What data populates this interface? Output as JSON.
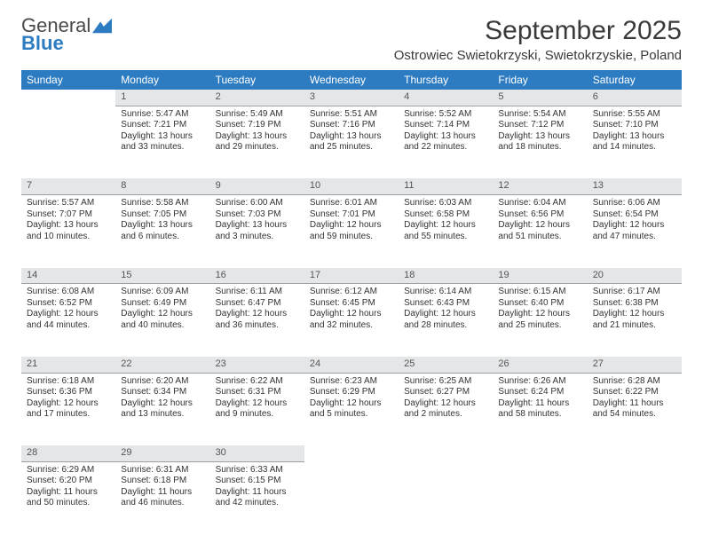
{
  "brand": {
    "part1": "General",
    "part2": "Blue"
  },
  "title": "September 2025",
  "location": "Ostrowiec Swietokrzyski, Swietokrzyskie, Poland",
  "colors": {
    "header_bg": "#2d7cc1",
    "header_text": "#ffffff",
    "daynum_bg": "#e4e6e8",
    "daynum_border": "#9aa0a6",
    "text": "#333333",
    "brand_blue": "#2d7cc1"
  },
  "weekdays": [
    "Sunday",
    "Monday",
    "Tuesday",
    "Wednesday",
    "Thursday",
    "Friday",
    "Saturday"
  ],
  "weeks": [
    {
      "nums": [
        "",
        "1",
        "2",
        "3",
        "4",
        "5",
        "6"
      ],
      "cells": [
        null,
        {
          "sunrise": "Sunrise: 5:47 AM",
          "sunset": "Sunset: 7:21 PM",
          "daylight": "Daylight: 13 hours and 33 minutes."
        },
        {
          "sunrise": "Sunrise: 5:49 AM",
          "sunset": "Sunset: 7:19 PM",
          "daylight": "Daylight: 13 hours and 29 minutes."
        },
        {
          "sunrise": "Sunrise: 5:51 AM",
          "sunset": "Sunset: 7:16 PM",
          "daylight": "Daylight: 13 hours and 25 minutes."
        },
        {
          "sunrise": "Sunrise: 5:52 AM",
          "sunset": "Sunset: 7:14 PM",
          "daylight": "Daylight: 13 hours and 22 minutes."
        },
        {
          "sunrise": "Sunrise: 5:54 AM",
          "sunset": "Sunset: 7:12 PM",
          "daylight": "Daylight: 13 hours and 18 minutes."
        },
        {
          "sunrise": "Sunrise: 5:55 AM",
          "sunset": "Sunset: 7:10 PM",
          "daylight": "Daylight: 13 hours and 14 minutes."
        }
      ]
    },
    {
      "nums": [
        "7",
        "8",
        "9",
        "10",
        "11",
        "12",
        "13"
      ],
      "cells": [
        {
          "sunrise": "Sunrise: 5:57 AM",
          "sunset": "Sunset: 7:07 PM",
          "daylight": "Daylight: 13 hours and 10 minutes."
        },
        {
          "sunrise": "Sunrise: 5:58 AM",
          "sunset": "Sunset: 7:05 PM",
          "daylight": "Daylight: 13 hours and 6 minutes."
        },
        {
          "sunrise": "Sunrise: 6:00 AM",
          "sunset": "Sunset: 7:03 PM",
          "daylight": "Daylight: 13 hours and 3 minutes."
        },
        {
          "sunrise": "Sunrise: 6:01 AM",
          "sunset": "Sunset: 7:01 PM",
          "daylight": "Daylight: 12 hours and 59 minutes."
        },
        {
          "sunrise": "Sunrise: 6:03 AM",
          "sunset": "Sunset: 6:58 PM",
          "daylight": "Daylight: 12 hours and 55 minutes."
        },
        {
          "sunrise": "Sunrise: 6:04 AM",
          "sunset": "Sunset: 6:56 PM",
          "daylight": "Daylight: 12 hours and 51 minutes."
        },
        {
          "sunrise": "Sunrise: 6:06 AM",
          "sunset": "Sunset: 6:54 PM",
          "daylight": "Daylight: 12 hours and 47 minutes."
        }
      ]
    },
    {
      "nums": [
        "14",
        "15",
        "16",
        "17",
        "18",
        "19",
        "20"
      ],
      "cells": [
        {
          "sunrise": "Sunrise: 6:08 AM",
          "sunset": "Sunset: 6:52 PM",
          "daylight": "Daylight: 12 hours and 44 minutes."
        },
        {
          "sunrise": "Sunrise: 6:09 AM",
          "sunset": "Sunset: 6:49 PM",
          "daylight": "Daylight: 12 hours and 40 minutes."
        },
        {
          "sunrise": "Sunrise: 6:11 AM",
          "sunset": "Sunset: 6:47 PM",
          "daylight": "Daylight: 12 hours and 36 minutes."
        },
        {
          "sunrise": "Sunrise: 6:12 AM",
          "sunset": "Sunset: 6:45 PM",
          "daylight": "Daylight: 12 hours and 32 minutes."
        },
        {
          "sunrise": "Sunrise: 6:14 AM",
          "sunset": "Sunset: 6:43 PM",
          "daylight": "Daylight: 12 hours and 28 minutes."
        },
        {
          "sunrise": "Sunrise: 6:15 AM",
          "sunset": "Sunset: 6:40 PM",
          "daylight": "Daylight: 12 hours and 25 minutes."
        },
        {
          "sunrise": "Sunrise: 6:17 AM",
          "sunset": "Sunset: 6:38 PM",
          "daylight": "Daylight: 12 hours and 21 minutes."
        }
      ]
    },
    {
      "nums": [
        "21",
        "22",
        "23",
        "24",
        "25",
        "26",
        "27"
      ],
      "cells": [
        {
          "sunrise": "Sunrise: 6:18 AM",
          "sunset": "Sunset: 6:36 PM",
          "daylight": "Daylight: 12 hours and 17 minutes."
        },
        {
          "sunrise": "Sunrise: 6:20 AM",
          "sunset": "Sunset: 6:34 PM",
          "daylight": "Daylight: 12 hours and 13 minutes."
        },
        {
          "sunrise": "Sunrise: 6:22 AM",
          "sunset": "Sunset: 6:31 PM",
          "daylight": "Daylight: 12 hours and 9 minutes."
        },
        {
          "sunrise": "Sunrise: 6:23 AM",
          "sunset": "Sunset: 6:29 PM",
          "daylight": "Daylight: 12 hours and 5 minutes."
        },
        {
          "sunrise": "Sunrise: 6:25 AM",
          "sunset": "Sunset: 6:27 PM",
          "daylight": "Daylight: 12 hours and 2 minutes."
        },
        {
          "sunrise": "Sunrise: 6:26 AM",
          "sunset": "Sunset: 6:24 PM",
          "daylight": "Daylight: 11 hours and 58 minutes."
        },
        {
          "sunrise": "Sunrise: 6:28 AM",
          "sunset": "Sunset: 6:22 PM",
          "daylight": "Daylight: 11 hours and 54 minutes."
        }
      ]
    },
    {
      "nums": [
        "28",
        "29",
        "30",
        "",
        "",
        "",
        ""
      ],
      "cells": [
        {
          "sunrise": "Sunrise: 6:29 AM",
          "sunset": "Sunset: 6:20 PM",
          "daylight": "Daylight: 11 hours and 50 minutes."
        },
        {
          "sunrise": "Sunrise: 6:31 AM",
          "sunset": "Sunset: 6:18 PM",
          "daylight": "Daylight: 11 hours and 46 minutes."
        },
        {
          "sunrise": "Sunrise: 6:33 AM",
          "sunset": "Sunset: 6:15 PM",
          "daylight": "Daylight: 11 hours and 42 minutes."
        },
        null,
        null,
        null,
        null
      ]
    }
  ]
}
